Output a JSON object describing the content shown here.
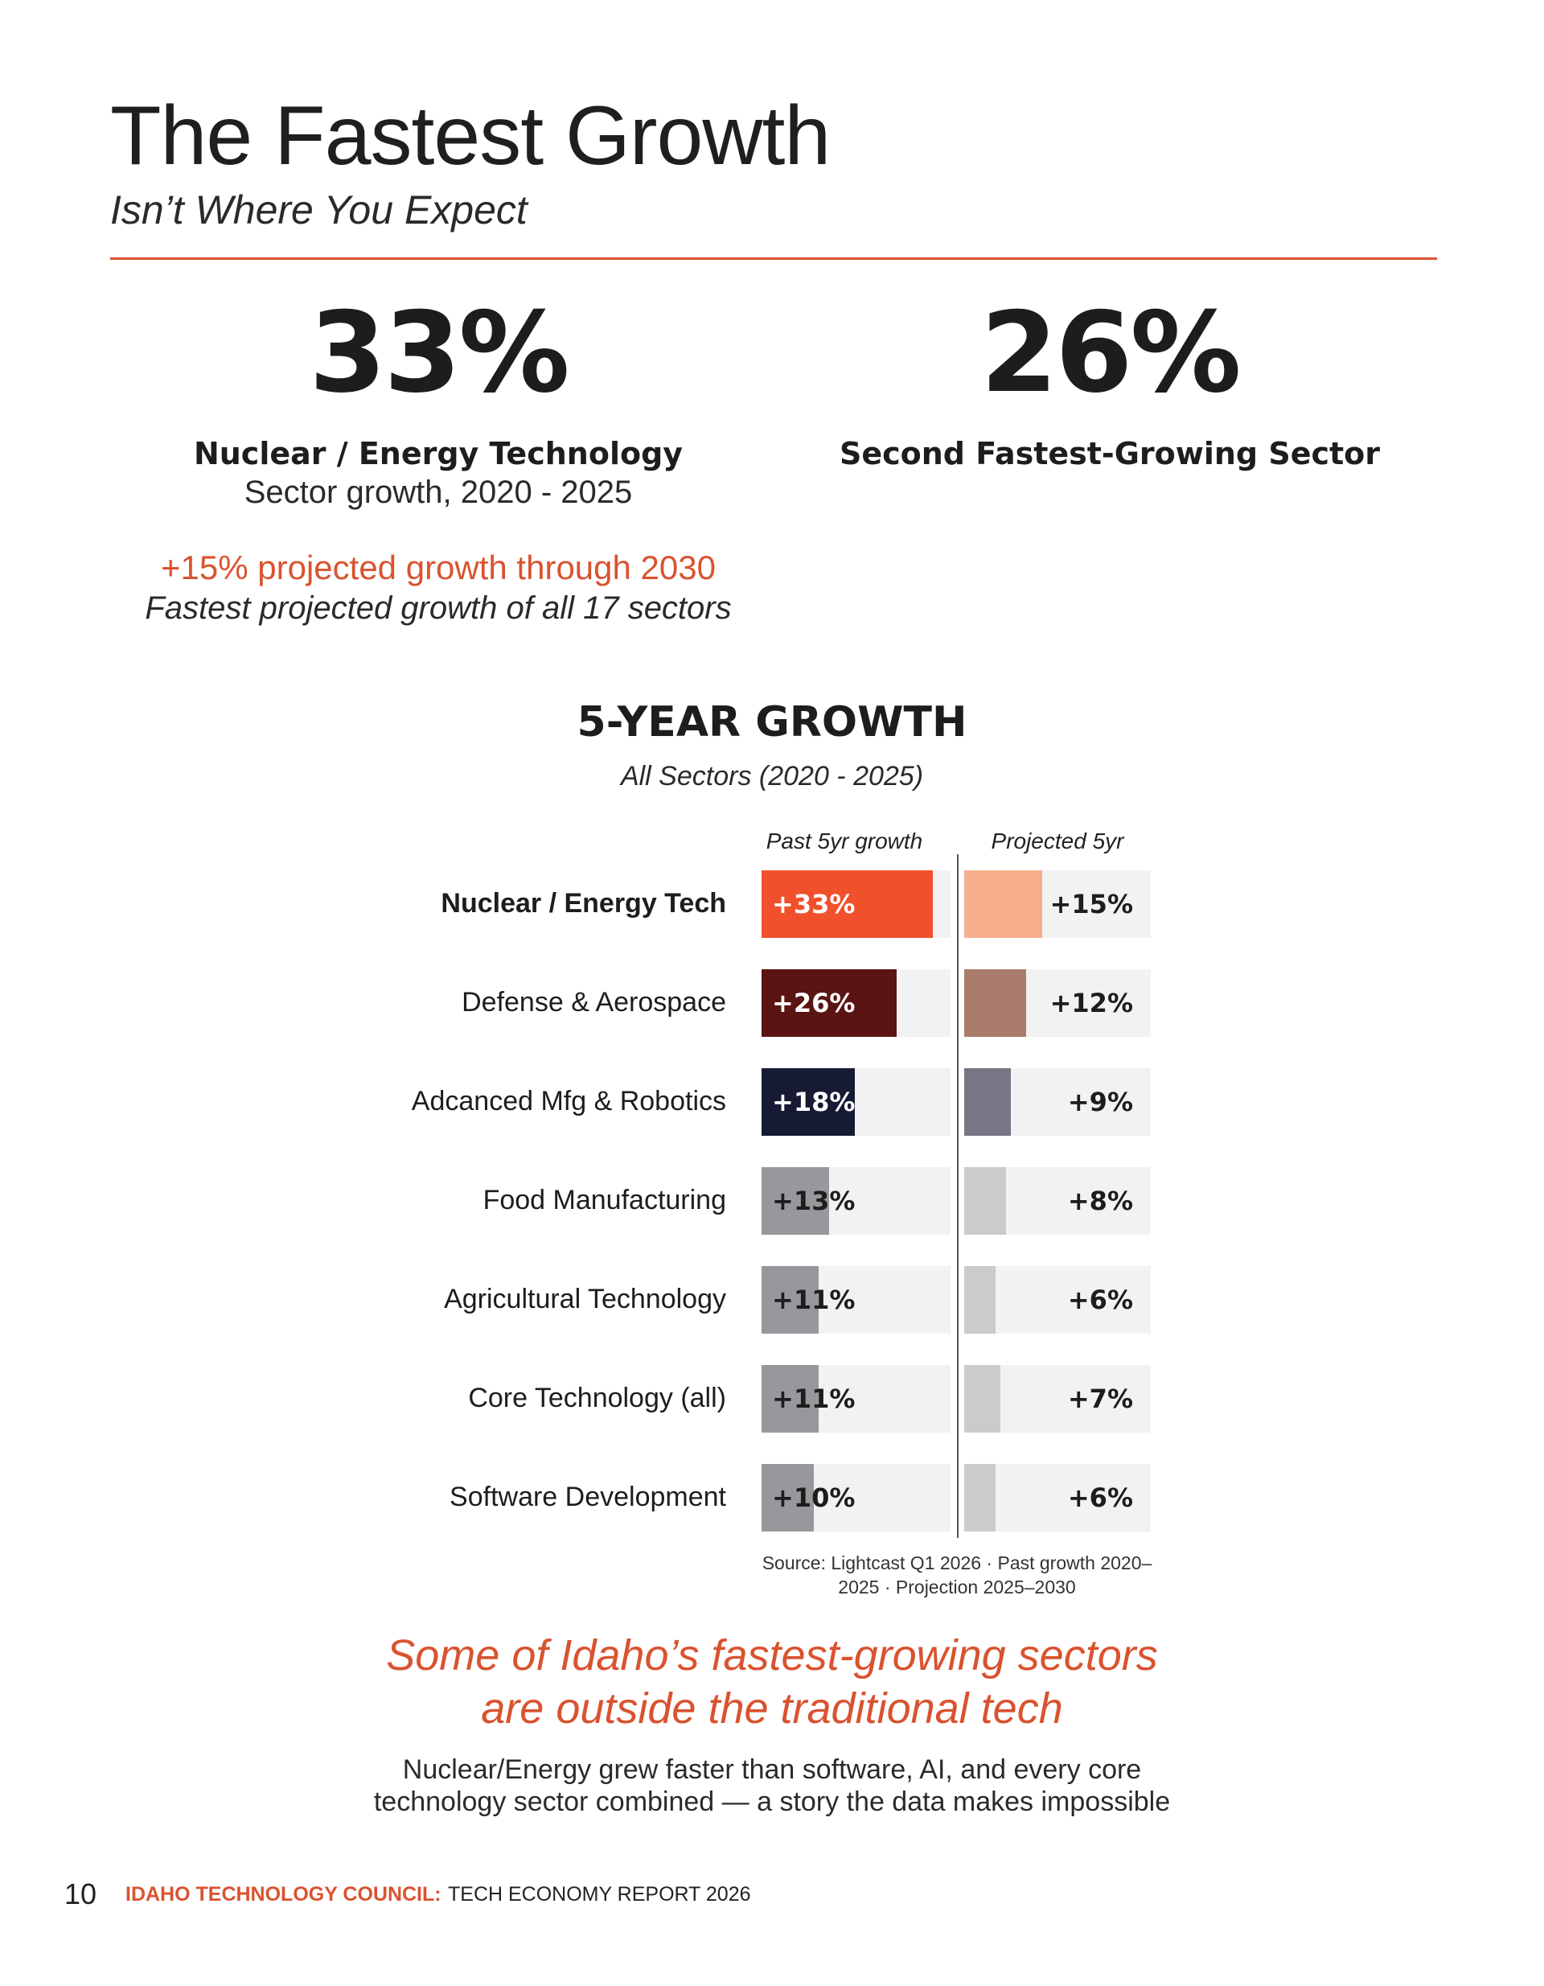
{
  "header": {
    "title": "The Fastest Growth",
    "subtitle": "Isn’t Where You Expect"
  },
  "stats": {
    "left": {
      "value": "33%",
      "label": "Nuclear / Energy Technology",
      "sublabel": "Sector growth, 2020 - 2025",
      "note_highlight": "+15% projected growth through 2030",
      "note_italic": "Fastest projected growth of all 17 sectors"
    },
    "right": {
      "value": "26%",
      "label": "Second Fastest-Growing Sector"
    }
  },
  "colors": {
    "accent": "#d9532f",
    "track": "#f2f2f2"
  },
  "chart_data": {
    "type": "bar",
    "title": "5-YEAR GROWTH",
    "subtitle": "All Sectors (2020 - 2025)",
    "series_headers": [
      "Past 5yr growth",
      "Projected 5yr"
    ],
    "xlim": [
      0,
      36
    ],
    "categories": [
      "Nuclear / Energy Tech",
      "Defense & Aerospace",
      "Adcanced Mfg & Robotics",
      "Food Manufacturing",
      "Agricultural Technology",
      "Core Technology (all)",
      "Software Development"
    ],
    "series": [
      {
        "values": [
          33,
          26,
          18,
          13,
          11,
          11,
          10
        ],
        "labels": [
          "+33%",
          "+26%",
          "+18%",
          "+13%",
          "+11%",
          "+11%",
          "+10%"
        ],
        "colors": [
          "#f0512c",
          "#5a1412",
          "#161a33",
          "#98989c",
          "#98989c",
          "#98989c",
          "#98989c"
        ],
        "label_colors": [
          "#ffffff",
          "#ffffff",
          "#ffffff",
          "#1d1d1d",
          "#1d1d1d",
          "#1d1d1d",
          "#1d1d1d"
        ]
      },
      {
        "values": [
          15,
          12,
          9,
          8,
          6,
          7,
          6
        ],
        "labels": [
          "+15%",
          "+12%",
          "+9%",
          "+8%",
          "+6%",
          "+7%",
          "+6%"
        ],
        "colors": [
          "#f7ae8c",
          "#a97c6c",
          "#7a7585",
          "#cbcbcb",
          "#cbcbcb",
          "#cbcbcb",
          "#cbcbcb"
        ]
      }
    ],
    "source": "Source: Lightcast Q1 2026 · Past growth 2020–2025 · Projection 2025–2030"
  },
  "callout": {
    "headline_line1": "Some of Idaho’s fastest-growing sectors",
    "headline_line2": "are outside the traditional tech",
    "body_line1": "Nuclear/Energy grew faster than software, AI, and every core",
    "body_line2": "technology sector combined — a story the data makes impossible"
  },
  "footer": {
    "page_number": "10",
    "org": "IDAHO TECHNOLOGY COUNCIL:",
    "report": "TECH ECONOMY REPORT 2026"
  }
}
